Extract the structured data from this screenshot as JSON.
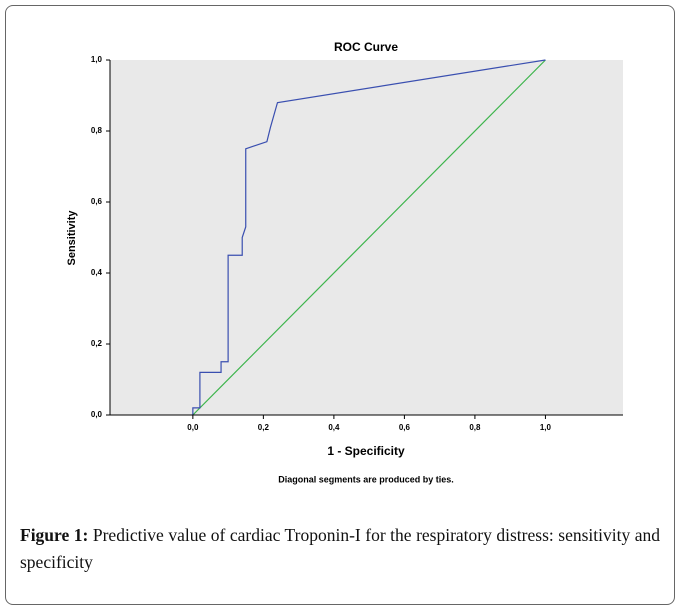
{
  "chart_data": {
    "type": "line",
    "title": "ROC Curve",
    "xlabel": "1 - Specificity",
    "ylabel": "Sensitivity",
    "note": "Diagonal segments are produced by ties.",
    "series": [
      {
        "color": "#3a4fb0",
        "x": [
          0,
          0,
          0.02,
          0.02,
          0.08,
          0.08,
          0.1,
          0.1,
          0.14,
          0.14,
          0.15,
          0.15,
          0.21,
          0.22,
          0.24,
          1
        ],
        "values": [
          0,
          0.02,
          0.02,
          0.12,
          0.12,
          0.15,
          0.15,
          0.45,
          0.45,
          0.5,
          0.53,
          0.75,
          0.77,
          0.81,
          0.88,
          1
        ]
      }
    ],
    "reference_line": {
      "color": "#3cb44b",
      "x": [
        0,
        1
      ],
      "values": [
        0,
        1
      ]
    },
    "xlim": [
      -0.235,
      1.22
    ],
    "ylim": [
      0,
      1
    ],
    "xticks": [
      {
        "value": 0,
        "label": "0,0"
      },
      {
        "value": 0.2,
        "label": "0,2"
      },
      {
        "value": 0.4,
        "label": "0,4"
      },
      {
        "value": 0.6,
        "label": "0,6"
      },
      {
        "value": 0.8,
        "label": "0,8"
      },
      {
        "value": 1,
        "label": "1,0"
      }
    ],
    "yticks": [
      {
        "value": 0,
        "label": "0,0"
      },
      {
        "value": 0.2,
        "label": "0,2"
      },
      {
        "value": 0.4,
        "label": "0,4"
      },
      {
        "value": 0.6,
        "label": "0,6"
      },
      {
        "value": 0.8,
        "label": "0,8"
      },
      {
        "value": 1,
        "label": "1,0"
      }
    ],
    "background": "#e9e9e9"
  },
  "caption": {
    "label": "Figure 1:",
    "text": " Predictive value of cardiac Troponin-I for the respiratory distress: sensitivity and specificity"
  }
}
